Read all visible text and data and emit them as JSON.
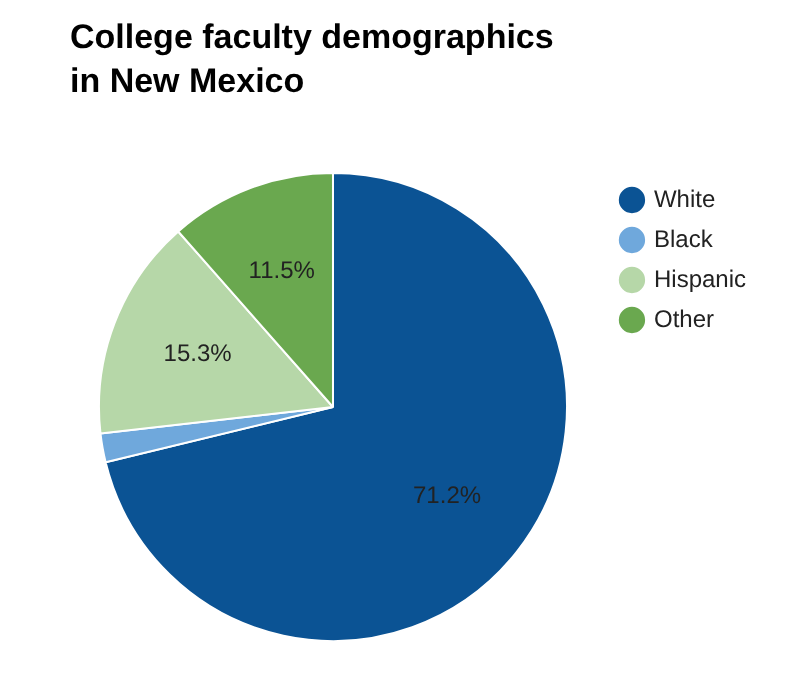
{
  "chart_data": {
    "type": "pie",
    "title": "College faculty demographics in New Mexico",
    "categories": [
      "White",
      "Black",
      "Hispanic",
      "Other"
    ],
    "values": [
      71.2,
      2.0,
      15.3,
      11.5
    ],
    "colors": [
      "#0b5394",
      "#6fa8dc",
      "#b6d7a8",
      "#6aa84f"
    ],
    "value_labels": [
      "71.2%",
      null,
      "15.3%",
      "11.5%"
    ],
    "legend": "right"
  }
}
